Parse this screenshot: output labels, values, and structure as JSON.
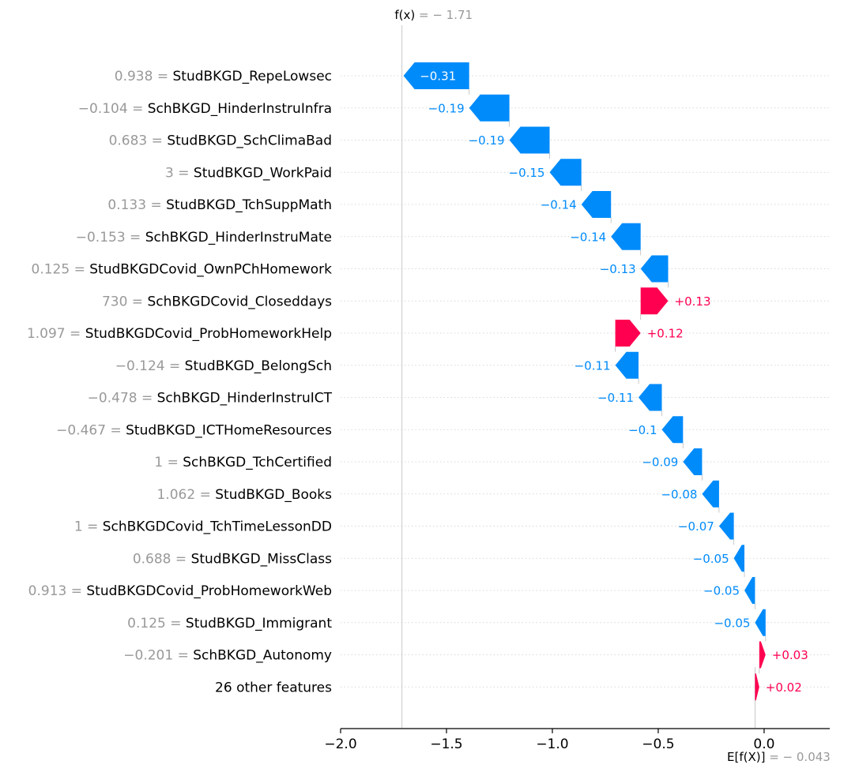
{
  "chart_data": {
    "type": "waterfall",
    "fx": -1.71,
    "base_value": -0.043,
    "fx_label": {
      "name": "f(x)",
      "eq": " = ",
      "value": "− 1.71"
    },
    "ex_label": {
      "name": "E[f(X)]",
      "eq": " = ",
      "value": "− 0.043"
    },
    "xlim": [
      -2.0,
      0.31
    ],
    "xticks": [
      -2.0,
      -1.5,
      -1.0,
      -0.5,
      0.0
    ],
    "xtick_labels": [
      "−2.0",
      "−1.5",
      "−1.0",
      "−0.5",
      "0.0"
    ],
    "features": [
      {
        "value": "0.938",
        "name": "StudBKGD_RepeLowsec",
        "shap": -0.31,
        "label": "−0.31"
      },
      {
        "value": "−0.104",
        "name": "SchBKGD_HinderInstruInfra",
        "shap": -0.19,
        "label": "−0.19"
      },
      {
        "value": "0.683",
        "name": "StudBKGD_SchClimaBad",
        "shap": -0.19,
        "label": "−0.19"
      },
      {
        "value": "3",
        "name": "StudBKGD_WorkPaid",
        "shap": -0.15,
        "label": "−0.15"
      },
      {
        "value": "0.133",
        "name": "StudBKGD_TchSuppMath",
        "shap": -0.14,
        "label": "−0.14"
      },
      {
        "value": "−0.153",
        "name": "SchBKGD_HinderInstruMate",
        "shap": -0.14,
        "label": "−0.14"
      },
      {
        "value": "0.125",
        "name": "StudBKGDCovid_OwnPChHomework",
        "shap": -0.13,
        "label": "−0.13"
      },
      {
        "value": "730",
        "name": "SchBKGDCovid_Closeddays",
        "shap": 0.13,
        "label": "+0.13"
      },
      {
        "value": "1.097",
        "name": "StudBKGDCovid_ProbHomeworkHelp",
        "shap": 0.12,
        "label": "+0.12"
      },
      {
        "value": "−0.124",
        "name": "StudBKGD_BelongSch",
        "shap": -0.11,
        "label": "−0.11"
      },
      {
        "value": "−0.478",
        "name": "SchBKGD_HinderInstruICT",
        "shap": -0.11,
        "label": "−0.11"
      },
      {
        "value": "−0.467",
        "name": "StudBKGD_ICTHomeResources",
        "shap": -0.1,
        "label": "−0.1"
      },
      {
        "value": "1",
        "name": "SchBKGD_TchCertified",
        "shap": -0.09,
        "label": "−0.09"
      },
      {
        "value": "1.062",
        "name": "StudBKGD_Books",
        "shap": -0.08,
        "label": "−0.08"
      },
      {
        "value": "1",
        "name": "SchBKGDCovid_TchTimeLessonDD",
        "shap": -0.07,
        "label": "−0.07"
      },
      {
        "value": "0.688",
        "name": "StudBKGD_MissClass",
        "shap": -0.05,
        "label": "−0.05"
      },
      {
        "value": "0.913",
        "name": "StudBKGDCovid_ProbHomeworkWeb",
        "shap": -0.05,
        "label": "−0.05"
      },
      {
        "value": "0.125",
        "name": "StudBKGD_Immigrant",
        "shap": -0.05,
        "label": "−0.05"
      },
      {
        "value": "−0.201",
        "name": "SchBKGD_Autonomy",
        "shap": 0.03,
        "label": "+0.03"
      },
      {
        "value": "",
        "name": "26 other features",
        "shap": 0.02,
        "label": "+0.02"
      }
    ],
    "colors": {
      "negative": "#008bfb",
      "positive": "#ff0051",
      "label_inside": "#ffffff",
      "value_gray": "#999999"
    }
  }
}
